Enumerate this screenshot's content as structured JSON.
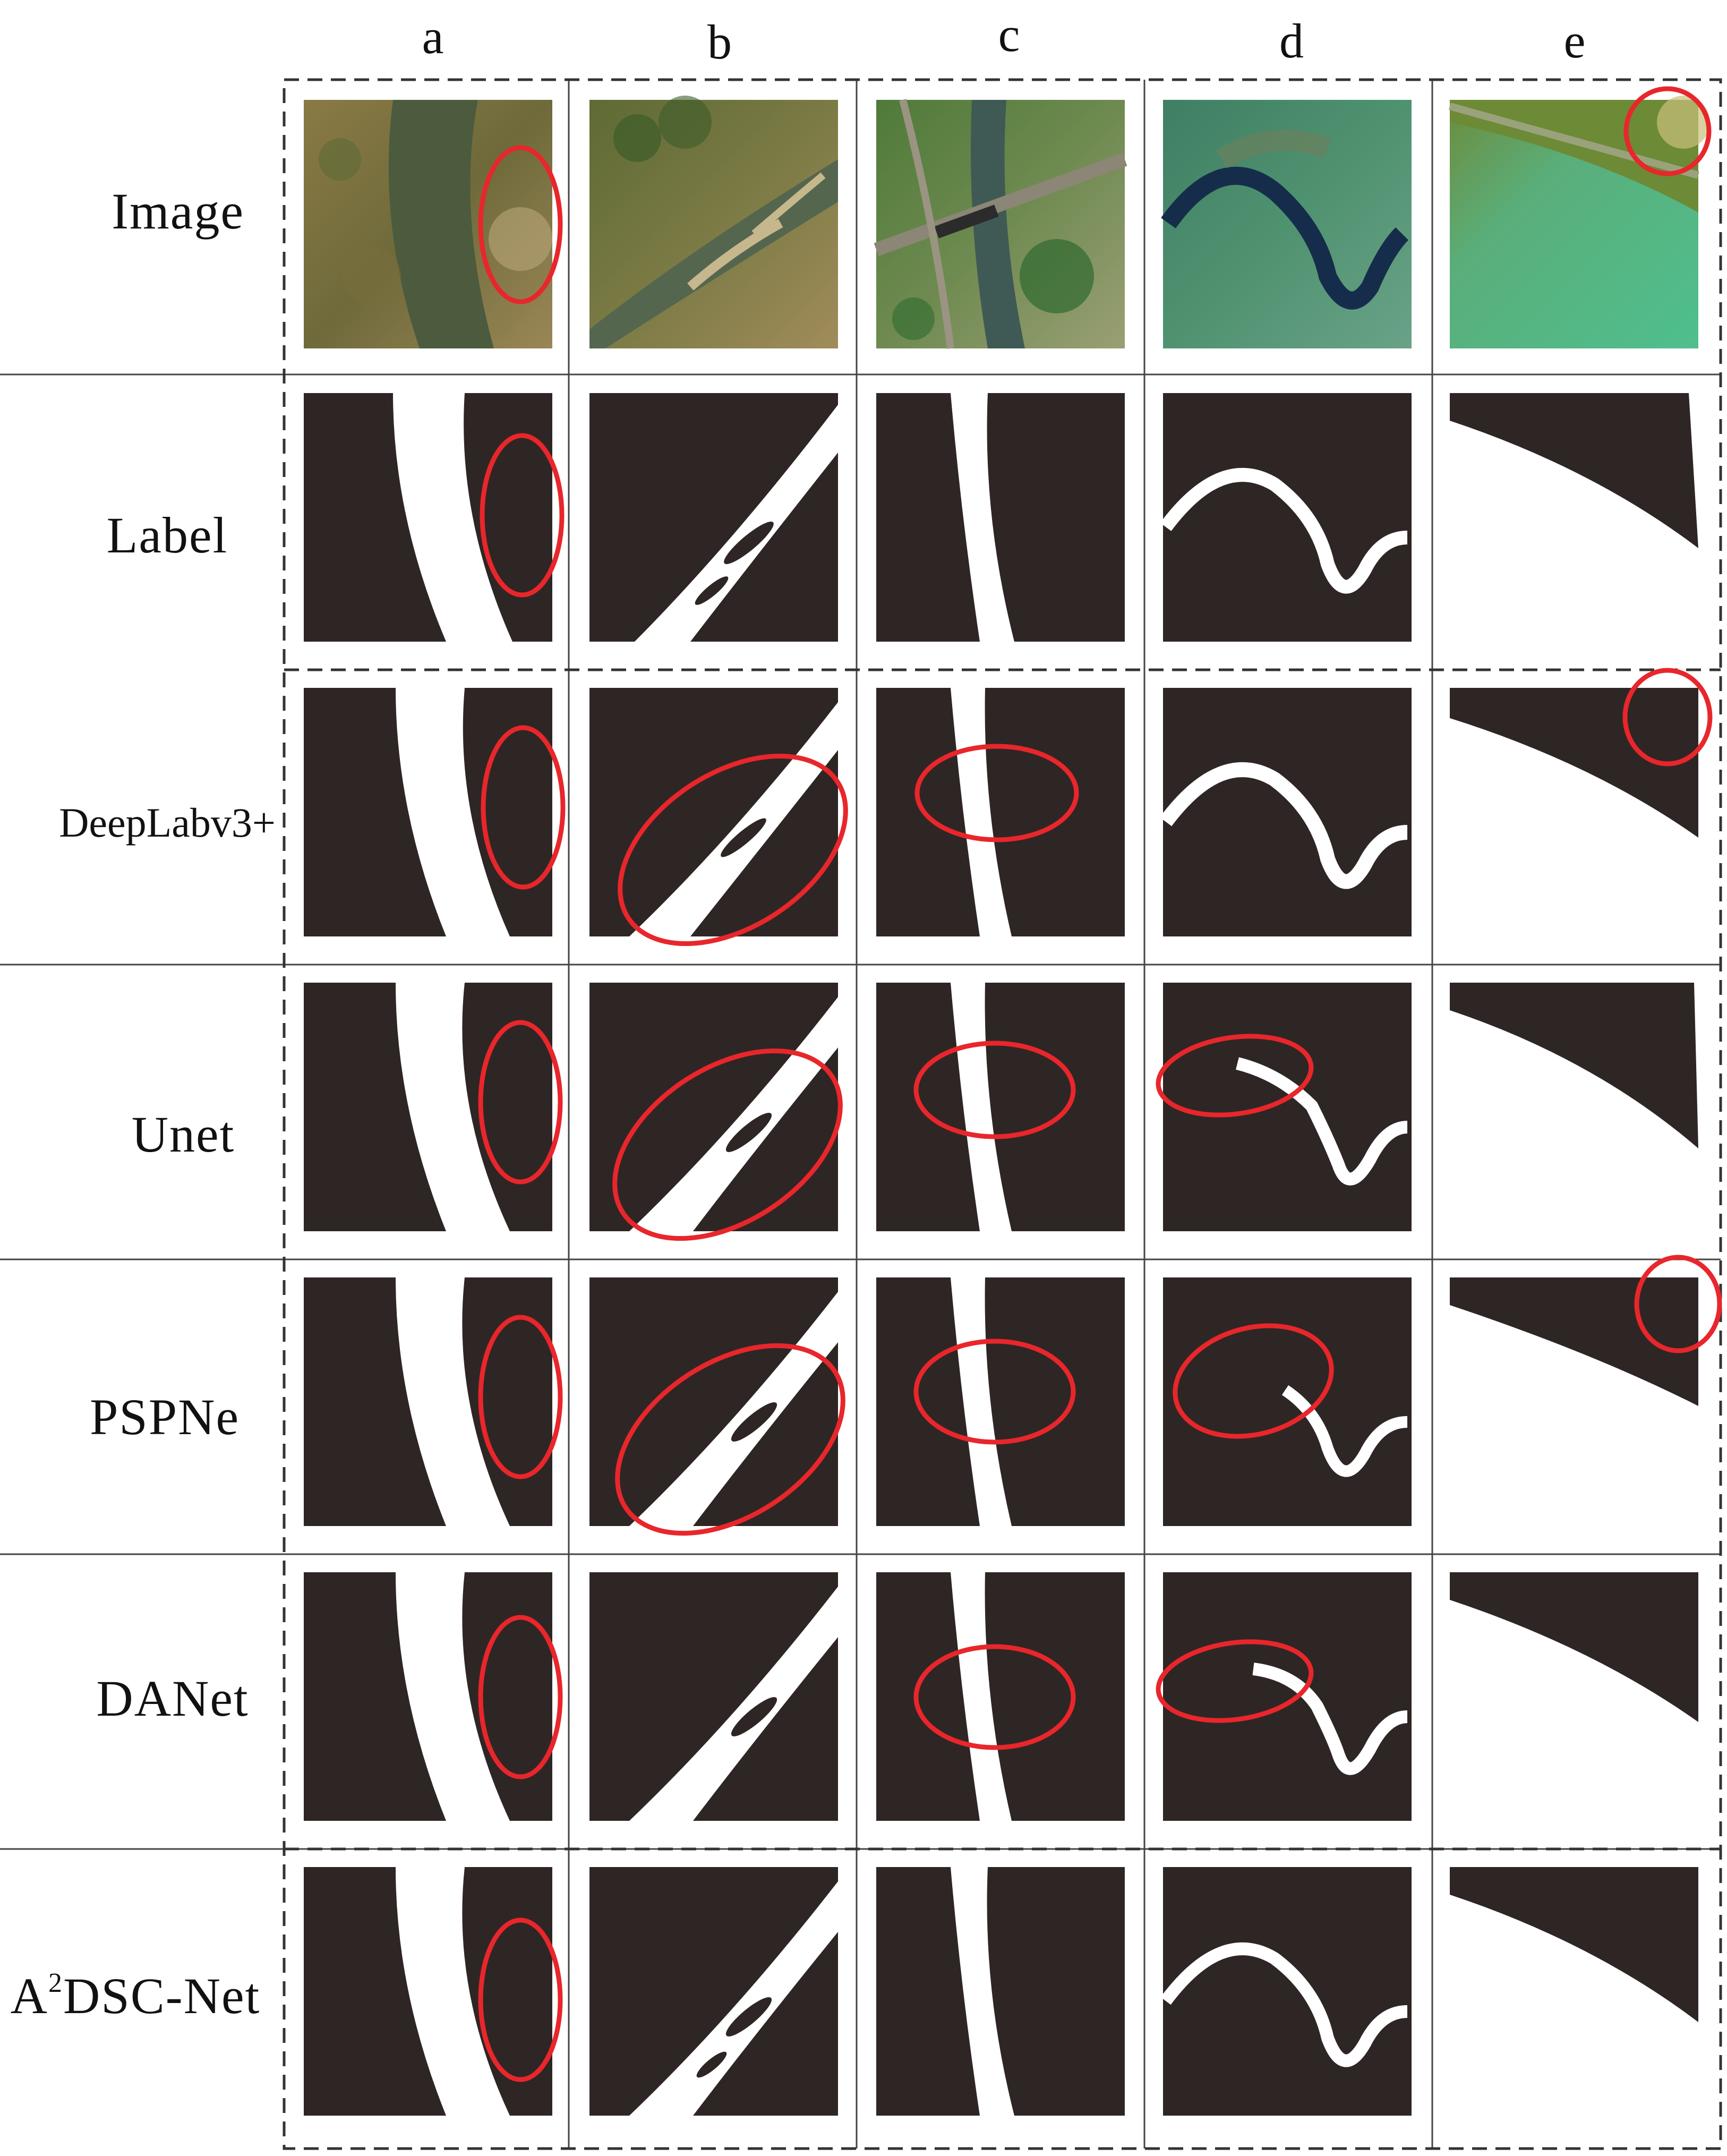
{
  "figure": {
    "columns": [
      "a",
      "b",
      "c",
      "d",
      "e"
    ],
    "rows": [
      {
        "label": "Image",
        "sup": "",
        "label_rest": ""
      },
      {
        "label": "Label",
        "sup": "",
        "label_rest": ""
      },
      {
        "label": "DeepLabv3+",
        "sup": "",
        "label_rest": ""
      },
      {
        "label": "Unet",
        "sup": "",
        "label_rest": ""
      },
      {
        "label": "PSPNe",
        "sup": "",
        "label_rest": ""
      },
      {
        "label": "DANet",
        "sup": "",
        "label_rest": ""
      },
      {
        "label": "A",
        "sup": "2",
        "label_rest": "DSC-Net"
      }
    ],
    "colors": {
      "mask_background": "#2e2624",
      "water": "#ffffff",
      "highlight_ellipse": "#e8262b",
      "grid_border": "#444444",
      "frame_dash": "#333333"
    }
  }
}
